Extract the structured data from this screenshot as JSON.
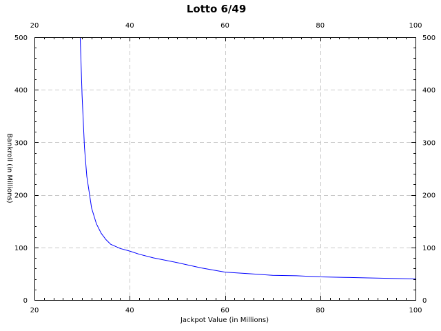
{
  "chart_data": {
    "type": "line",
    "title": "Lotto 6/49",
    "xlabel": "Jackpot Value (in Millions)",
    "ylabel": "Bankroll (in Millions)",
    "xlim": [
      20,
      100
    ],
    "ylim": [
      0,
      500
    ],
    "x_ticks": [
      20,
      40,
      60,
      80,
      100
    ],
    "y_ticks": [
      0,
      100,
      200,
      300,
      400,
      500
    ],
    "grid": true,
    "series": [
      {
        "color": "#0000ff",
        "x": [
          29.6,
          30,
          30.5,
          31,
          32,
          33,
          34,
          35,
          36,
          38,
          40,
          42,
          45,
          50,
          55,
          60,
          65,
          70,
          75,
          80,
          85,
          90,
          95,
          100
        ],
        "y": [
          500,
          390,
          290,
          235,
          175,
          145,
          127,
          115,
          106,
          98,
          93,
          87,
          80,
          71,
          61,
          53,
          50,
          47,
          46,
          44,
          43,
          42,
          41,
          40
        ]
      }
    ]
  }
}
